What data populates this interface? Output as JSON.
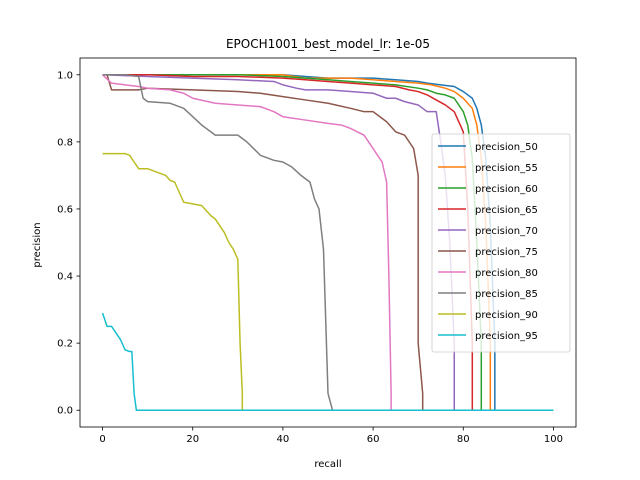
{
  "chart_data": {
    "type": "line",
    "title": "EPOCH1001_best_model_lr: 1e-05",
    "xlabel": "recall",
    "ylabel": "precision",
    "xlim": [
      -5,
      105
    ],
    "ylim": [
      -0.05,
      1.05
    ],
    "xticks": [
      0,
      20,
      40,
      60,
      80,
      100
    ],
    "yticks": [
      0.0,
      0.2,
      0.4,
      0.6,
      0.8,
      1.0
    ],
    "xtick_labels": [
      "0",
      "20",
      "40",
      "60",
      "80",
      "100"
    ],
    "ytick_labels": [
      "0.0",
      "0.2",
      "0.4",
      "0.6",
      "0.8",
      "1.0"
    ],
    "grid": false,
    "legend_position": "center-right",
    "series": [
      {
        "name": "precision_50",
        "color": "#1f77b4",
        "x": [
          0,
          10,
          20,
          30,
          40,
          45,
          50,
          55,
          60,
          65,
          70,
          72,
          75,
          78,
          80,
          82,
          83,
          84,
          85,
          86,
          87,
          87,
          100
        ],
        "y": [
          1.0,
          1.0,
          1.0,
          1.0,
          1.0,
          0.995,
          0.99,
          0.99,
          0.99,
          0.985,
          0.98,
          0.975,
          0.97,
          0.965,
          0.95,
          0.93,
          0.9,
          0.85,
          0.75,
          0.55,
          0.2,
          0.0,
          0.0
        ]
      },
      {
        "name": "precision_55",
        "color": "#ff7f0e",
        "x": [
          0,
          10,
          20,
          30,
          40,
          45,
          50,
          55,
          60,
          65,
          70,
          73,
          76,
          78,
          80,
          82,
          83,
          84,
          85,
          86,
          86,
          100
        ],
        "y": [
          1.0,
          1.0,
          1.0,
          1.0,
          1.0,
          0.99,
          0.99,
          0.99,
          0.985,
          0.98,
          0.975,
          0.97,
          0.96,
          0.95,
          0.93,
          0.9,
          0.85,
          0.75,
          0.55,
          0.2,
          0.0,
          0.0
        ]
      },
      {
        "name": "precision_60",
        "color": "#2ca02c",
        "x": [
          0,
          10,
          20,
          30,
          40,
          45,
          50,
          55,
          60,
          65,
          70,
          72,
          74,
          76,
          78,
          79,
          80,
          81,
          82,
          83,
          84,
          84,
          100
        ],
        "y": [
          1.0,
          1.0,
          1.0,
          1.0,
          0.995,
          0.99,
          0.985,
          0.98,
          0.975,
          0.97,
          0.96,
          0.955,
          0.945,
          0.94,
          0.93,
          0.91,
          0.89,
          0.85,
          0.75,
          0.5,
          0.2,
          0.0,
          0.0
        ]
      },
      {
        "name": "precision_65",
        "color": "#d62728",
        "x": [
          0,
          10,
          20,
          30,
          40,
          45,
          50,
          55,
          60,
          65,
          68,
          70,
          72,
          74,
          76,
          78,
          80,
          81,
          82,
          82,
          100
        ],
        "y": [
          1.0,
          1.0,
          0.995,
          0.995,
          0.99,
          0.985,
          0.98,
          0.975,
          0.97,
          0.965,
          0.955,
          0.95,
          0.94,
          0.925,
          0.91,
          0.89,
          0.83,
          0.6,
          0.2,
          0.0,
          0.0
        ]
      },
      {
        "name": "precision_70",
        "color": "#9467bd",
        "x": [
          0,
          10,
          20,
          30,
          38,
          40,
          43,
          45,
          50,
          55,
          60,
          63,
          65,
          67,
          70,
          72,
          74,
          75,
          76,
          77,
          78,
          78,
          100
        ],
        "y": [
          1.0,
          0.995,
          0.99,
          0.985,
          0.98,
          0.97,
          0.96,
          0.955,
          0.955,
          0.95,
          0.945,
          0.93,
          0.93,
          0.92,
          0.91,
          0.89,
          0.89,
          0.8,
          0.7,
          0.5,
          0.2,
          0.0,
          0.0
        ]
      },
      {
        "name": "precision_75",
        "color": "#8c564b",
        "x": [
          0,
          1,
          2,
          6,
          8,
          10,
          20,
          30,
          35,
          40,
          45,
          50,
          55,
          58,
          60,
          62,
          63,
          65,
          67,
          68,
          69,
          70,
          70,
          71,
          71,
          100
        ],
        "y": [
          1.0,
          1.0,
          0.955,
          0.955,
          0.955,
          0.96,
          0.955,
          0.95,
          0.945,
          0.935,
          0.925,
          0.915,
          0.9,
          0.89,
          0.89,
          0.87,
          0.86,
          0.83,
          0.82,
          0.8,
          0.78,
          0.7,
          0.2,
          0.05,
          0.0,
          0.0
        ]
      },
      {
        "name": "precision_80",
        "color": "#e377c2",
        "x": [
          0,
          2,
          5,
          8,
          10,
          15,
          18,
          20,
          25,
          30,
          35,
          38,
          40,
          45,
          50,
          53,
          55,
          58,
          60,
          61,
          62,
          63,
          63.5,
          64,
          64,
          100
        ],
        "y": [
          1.0,
          0.975,
          0.97,
          0.965,
          0.96,
          0.955,
          0.945,
          0.93,
          0.915,
          0.91,
          0.905,
          0.89,
          0.875,
          0.865,
          0.855,
          0.85,
          0.84,
          0.82,
          0.78,
          0.76,
          0.74,
          0.68,
          0.4,
          0.05,
          0.0,
          0.0
        ]
      },
      {
        "name": "precision_85",
        "color": "#7f7f7f",
        "x": [
          0,
          5,
          8,
          9,
          10,
          15,
          18,
          20,
          22,
          25,
          30,
          32,
          35,
          38,
          40,
          42,
          44,
          45,
          46,
          47,
          48,
          49,
          50,
          51,
          51,
          100
        ],
        "y": [
          1.0,
          1.0,
          0.995,
          0.93,
          0.92,
          0.915,
          0.9,
          0.875,
          0.85,
          0.82,
          0.82,
          0.8,
          0.76,
          0.745,
          0.74,
          0.725,
          0.7,
          0.69,
          0.68,
          0.63,
          0.6,
          0.48,
          0.05,
          0.0,
          0.0,
          0.0
        ]
      },
      {
        "name": "precision_90",
        "color": "#bcbd22",
        "x": [
          0,
          5,
          6,
          7,
          8,
          10,
          12,
          14,
          15,
          16,
          18,
          20,
          22,
          24,
          25,
          27,
          28,
          29,
          30,
          30.5,
          31,
          31,
          100
        ],
        "y": [
          0.765,
          0.765,
          0.76,
          0.74,
          0.72,
          0.72,
          0.71,
          0.7,
          0.685,
          0.68,
          0.62,
          0.615,
          0.61,
          0.58,
          0.57,
          0.53,
          0.5,
          0.48,
          0.45,
          0.2,
          0.05,
          0.0,
          0.0
        ]
      },
      {
        "name": "precision_95",
        "color": "#17becf",
        "x": [
          0,
          1,
          2,
          3,
          4,
          5,
          6,
          6.5,
          7,
          7.5,
          8,
          8,
          100
        ],
        "y": [
          0.29,
          0.25,
          0.25,
          0.23,
          0.21,
          0.18,
          0.175,
          0.175,
          0.05,
          0.0,
          0.0,
          0.0,
          0.0
        ]
      }
    ]
  }
}
